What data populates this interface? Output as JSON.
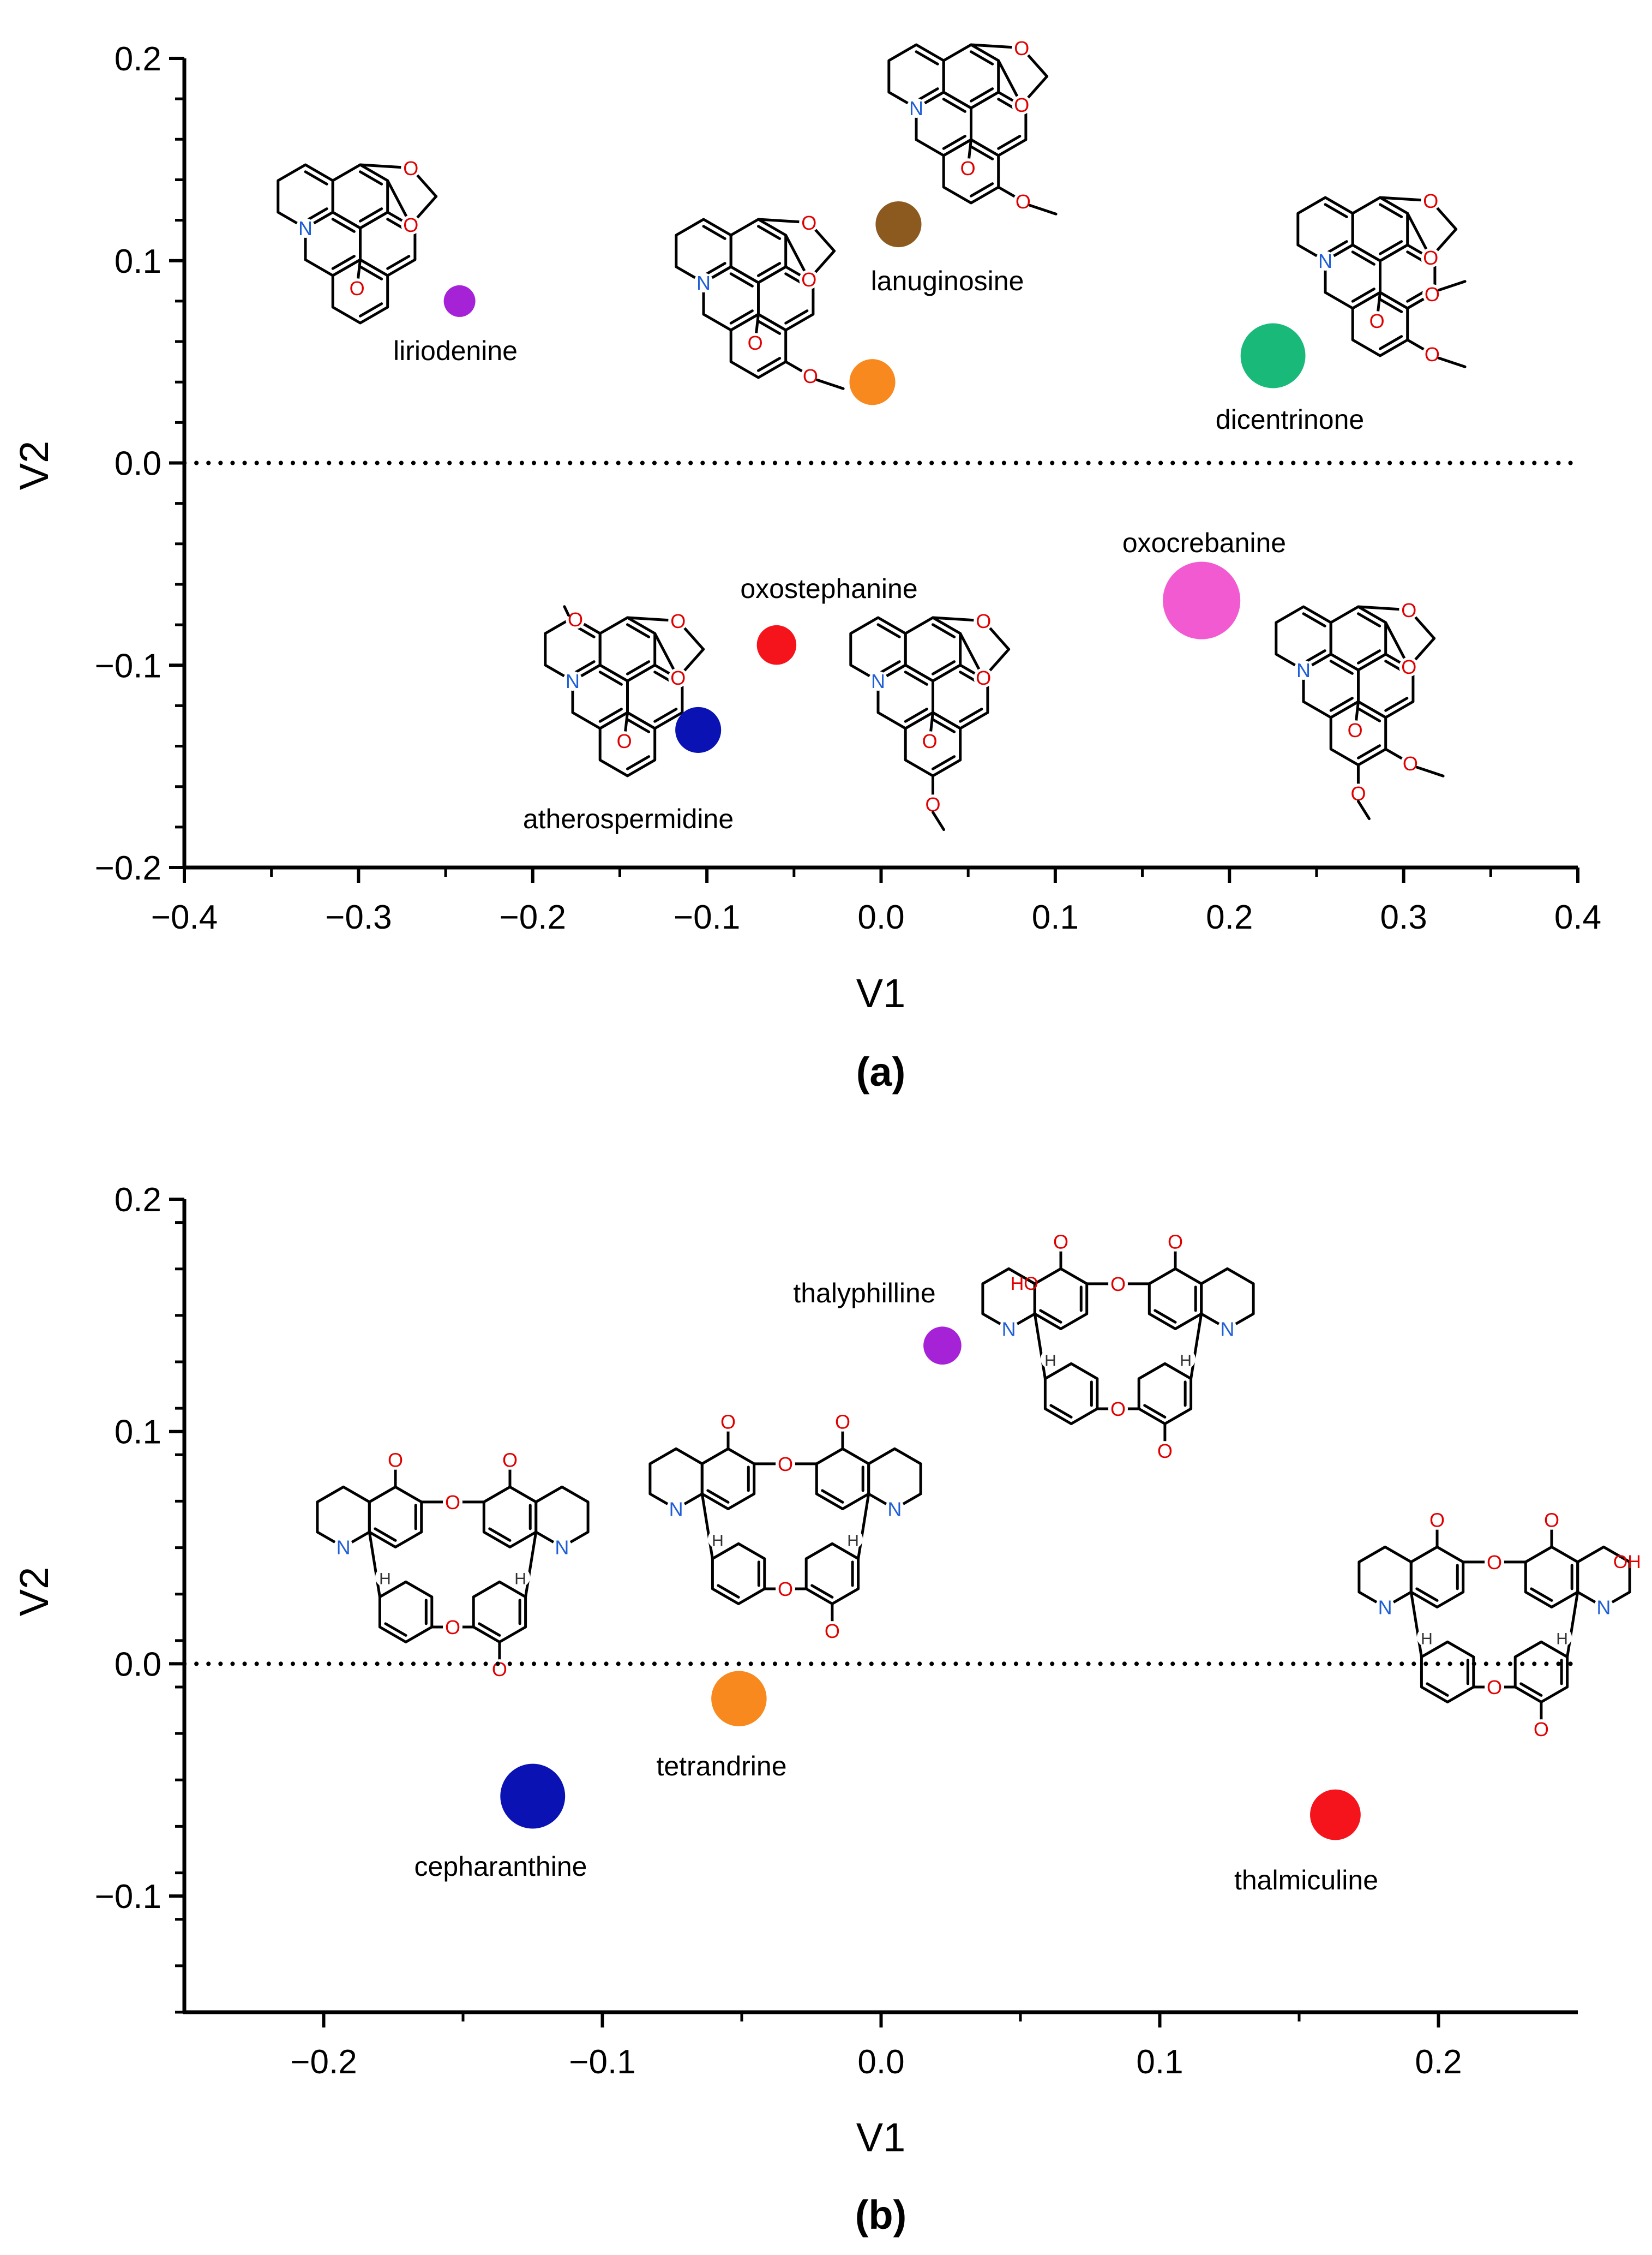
{
  "chart_data": [
    {
      "type": "scatter",
      "title": "",
      "panel_label": "(a)",
      "xlabel": "V1",
      "ylabel": "V2",
      "xlim": [
        -0.4,
        0.4
      ],
      "ylim": [
        -0.2,
        0.2
      ],
      "xticks": [
        -0.4,
        -0.3,
        -0.2,
        -0.1,
        0.0,
        0.1,
        0.2,
        0.3,
        0.4
      ],
      "xtick_labels": [
        "−0.4",
        "−0.3",
        "−0.2",
        "−0.1",
        "0.0",
        "0.1",
        "0.2",
        "0.3",
        "0.4"
      ],
      "yticks": [
        -0.2,
        -0.1,
        0.0,
        0.1,
        0.2
      ],
      "ytick_labels": [
        "−0.2",
        "−0.1",
        "0.0",
        "0.1",
        "0.2"
      ],
      "reference_line": {
        "axis": "y",
        "value": 0.0,
        "style": "dotted"
      },
      "points": [
        {
          "label": "liriodenine",
          "x": -0.242,
          "y": 0.08,
          "size": 1.0,
          "color": "#a522d6"
        },
        {
          "label": "lanuginosine",
          "x": 0.01,
          "y": 0.118,
          "size": 1.45,
          "color": "#8c5a1f"
        },
        {
          "label": "",
          "x": -0.005,
          "y": 0.04,
          "size": 1.45,
          "color": "#f7891f"
        },
        {
          "label": "dicentrinone",
          "x": 0.225,
          "y": 0.053,
          "size": 2.05,
          "color": "#19b97a"
        },
        {
          "label": "oxostephanine",
          "x": -0.06,
          "y": -0.09,
          "size": 1.25,
          "color": "#f5141b"
        },
        {
          "label": "atherospermidine",
          "x": -0.105,
          "y": -0.132,
          "size": 1.45,
          "color": "#0b12b4"
        },
        {
          "label": "oxocrebanine",
          "x": 0.184,
          "y": -0.068,
          "size": 2.45,
          "color": "#f25ad2"
        }
      ]
    },
    {
      "type": "scatter",
      "title": "",
      "panel_label": "(b)",
      "xlabel": "V1",
      "ylabel": "V2",
      "xlim": [
        -0.25,
        0.25
      ],
      "ylim": [
        -0.15,
        0.2
      ],
      "xticks": [
        -0.2,
        -0.1,
        0.0,
        0.1,
        0.2
      ],
      "xtick_labels": [
        "−0.2",
        "−0.1",
        "0.0",
        "0.1",
        "0.2"
      ],
      "yticks": [
        -0.1,
        0.0,
        0.1,
        0.2
      ],
      "ytick_labels": [
        "−0.1",
        "0.0",
        "0.1",
        "0.2"
      ],
      "reference_line": {
        "axis": "y",
        "value": 0.0,
        "style": "dotted"
      },
      "points": [
        {
          "label": "thalyphilline",
          "x": 0.022,
          "y": 0.137,
          "size": 1.2,
          "color": "#a522d6"
        },
        {
          "label": "tetrandrine",
          "x": -0.051,
          "y": -0.015,
          "size": 1.75,
          "color": "#f7891f"
        },
        {
          "label": "cepharanthine",
          "x": -0.125,
          "y": -0.057,
          "size": 2.05,
          "color": "#0b12b4"
        },
        {
          "label": "thalmiculine",
          "x": 0.163,
          "y": -0.065,
          "size": 1.6,
          "color": "#f5141b"
        }
      ]
    }
  ],
  "structure_atoms": {
    "nitrogen": "N",
    "oxygen": "O",
    "hydroxyl": "HO",
    "hydroxyl_right": "OH",
    "hydrogen": "H"
  },
  "colors": {
    "axis": "#000000",
    "bond": "#000000",
    "nitrogen": "#1f5fd6",
    "oxygen": "#e00000"
  }
}
